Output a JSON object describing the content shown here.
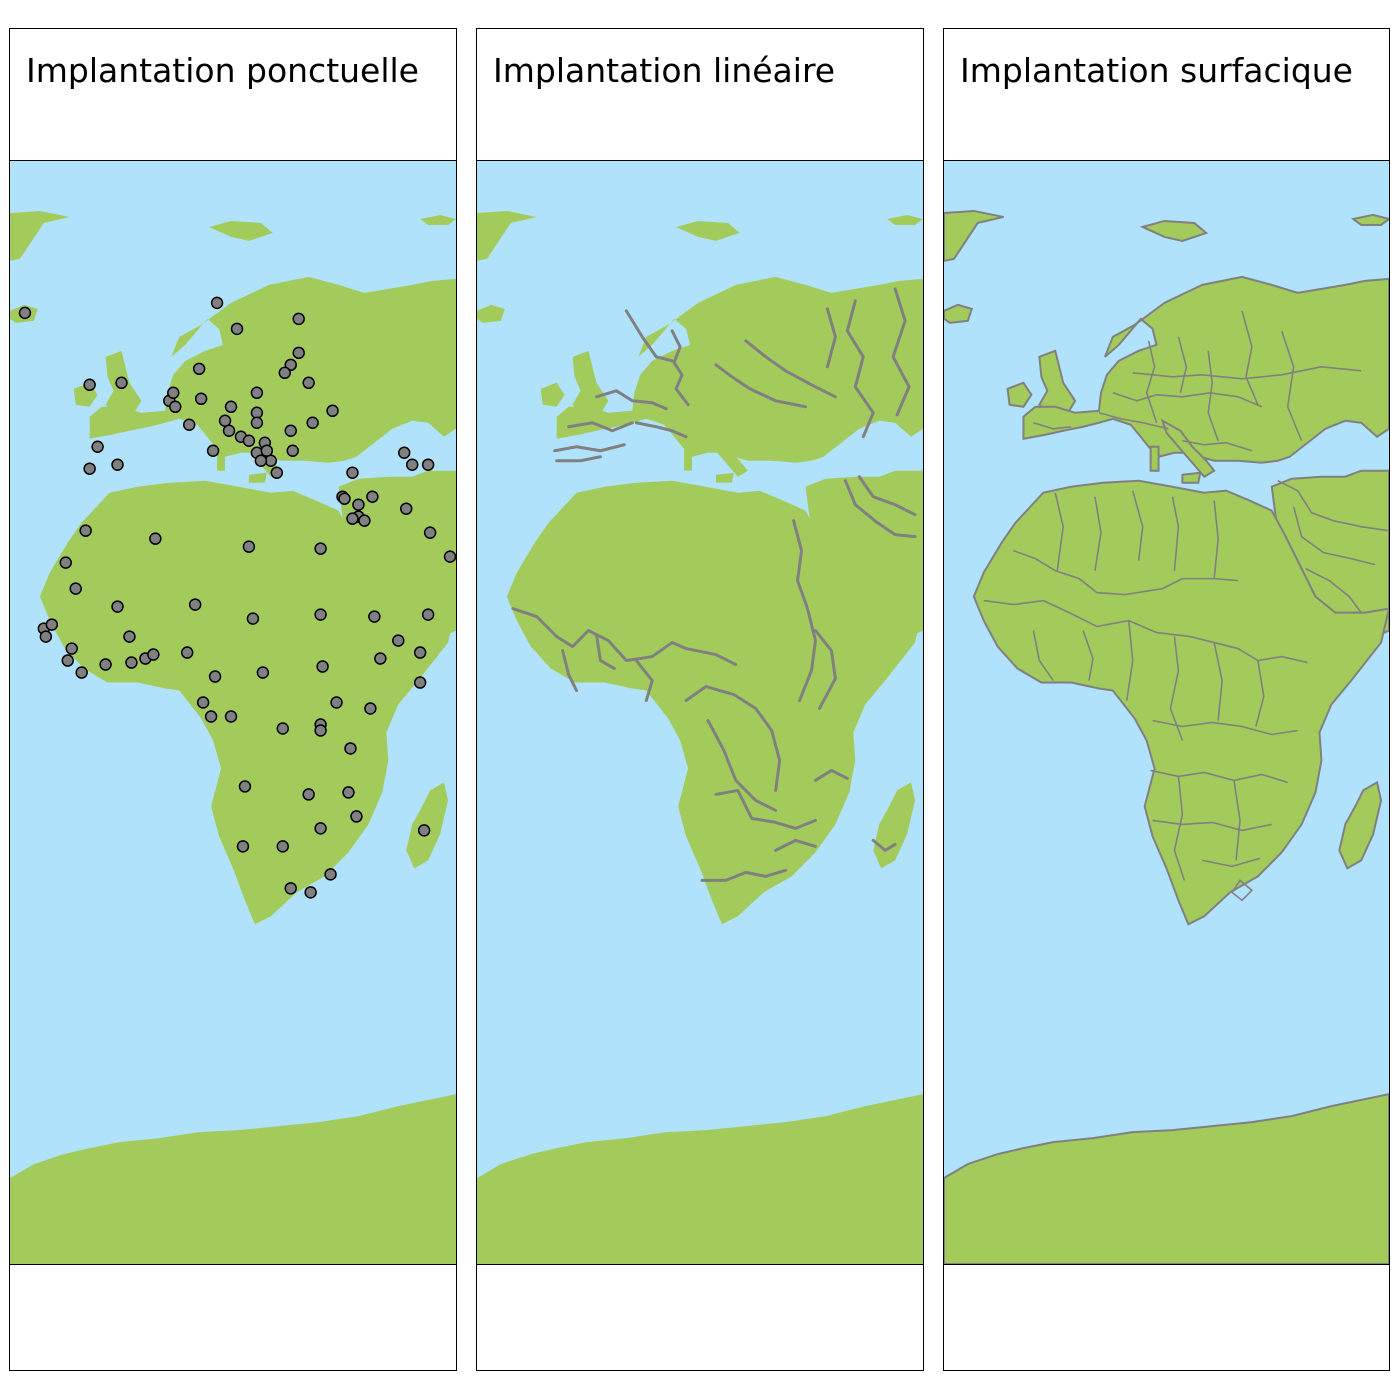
{
  "colors": {
    "ocean": "#b1e2fc",
    "land": "#a3cb5c",
    "feature": "#808080",
    "point_stroke": "#000000",
    "frame": "#000000"
  },
  "panels": [
    {
      "title": "Implantation ponctuelle",
      "layer": "points"
    },
    {
      "title": "Implantation linéaire",
      "layer": "rivers"
    },
    {
      "title": "Implantation surfacique",
      "layer": "boundaries"
    }
  ]
}
